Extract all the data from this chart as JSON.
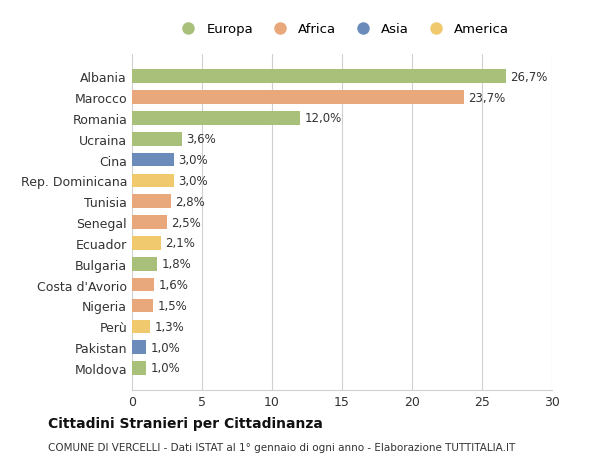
{
  "countries": [
    "Albania",
    "Marocco",
    "Romania",
    "Ucraina",
    "Cina",
    "Rep. Dominicana",
    "Tunisia",
    "Senegal",
    "Ecuador",
    "Bulgaria",
    "Costa d'Avorio",
    "Nigeria",
    "Perù",
    "Pakistan",
    "Moldova"
  ],
  "values": [
    26.7,
    23.7,
    12.0,
    3.6,
    3.0,
    3.0,
    2.8,
    2.5,
    2.1,
    1.8,
    1.6,
    1.5,
    1.3,
    1.0,
    1.0
  ],
  "labels": [
    "26,7%",
    "23,7%",
    "12,0%",
    "3,6%",
    "3,0%",
    "3,0%",
    "2,8%",
    "2,5%",
    "2,1%",
    "1,8%",
    "1,6%",
    "1,5%",
    "1,3%",
    "1,0%",
    "1,0%"
  ],
  "continents": [
    "Europa",
    "Africa",
    "Europa",
    "Europa",
    "Asia",
    "America",
    "Africa",
    "Africa",
    "America",
    "Europa",
    "Africa",
    "Africa",
    "America",
    "Asia",
    "Europa"
  ],
  "continent_colors": {
    "Europa": "#a8c07a",
    "Africa": "#e8a87c",
    "Asia": "#6b8cba",
    "America": "#f0c96e"
  },
  "legend_order": [
    "Europa",
    "Africa",
    "Asia",
    "America"
  ],
  "xlim": [
    0,
    30
  ],
  "xticks": [
    0,
    5,
    10,
    15,
    20,
    25,
    30
  ],
  "title": "Cittadini Stranieri per Cittadinanza",
  "subtitle": "COMUNE DI VERCELLI - Dati ISTAT al 1° gennaio di ogni anno - Elaborazione TUTTITALIA.IT",
  "bg_color": "#ffffff",
  "grid_color": "#d0d0d0",
  "bar_height": 0.65
}
